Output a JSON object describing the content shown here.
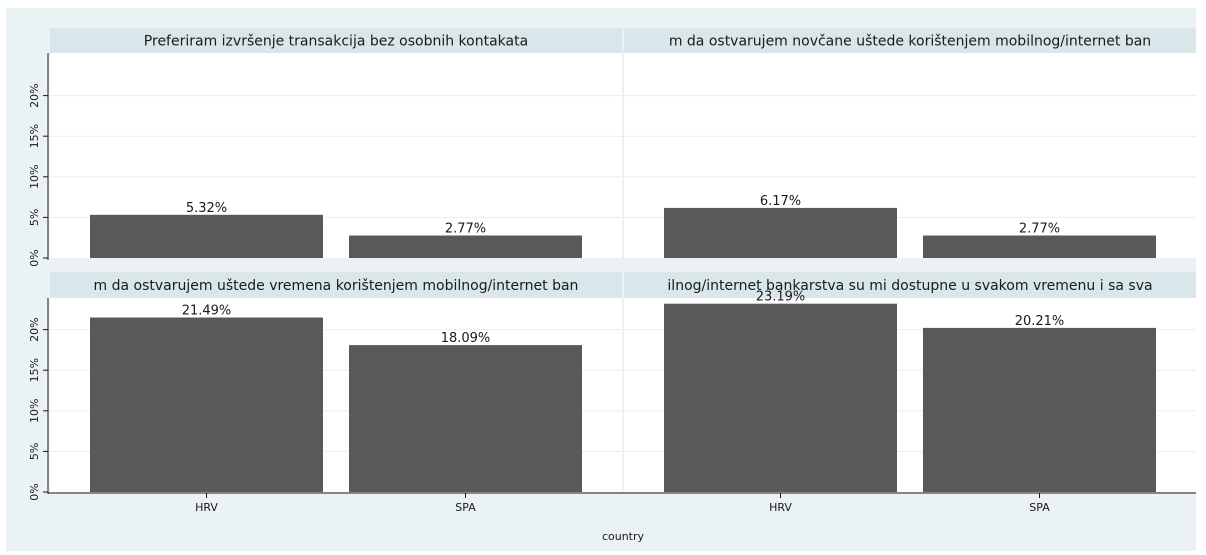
{
  "chart_data": {
    "type": "bar",
    "xlabel": "country",
    "ylabel": "",
    "categories": [
      "HRV",
      "SPA"
    ],
    "ylim": [
      0,
      25
    ],
    "yticks": [
      "0%",
      "5%",
      "10%",
      "15%",
      "20%"
    ],
    "grid": true,
    "bar_color": "#595959",
    "panels": [
      {
        "title": "Preferiram izvršenje transakcija bez osobnih kontakata",
        "values": [
          5.32,
          2.77
        ],
        "labels": [
          "5.32%",
          "2.77%"
        ]
      },
      {
        "title": "m da ostvarujem novčane uštede korištenjem mobilnog/internet ban",
        "values": [
          6.17,
          2.77
        ],
        "labels": [
          "6.17%",
          "2.77%"
        ]
      },
      {
        "title": "m da ostvarujem uštede vremena korištenjem mobilnog/internet ban",
        "values": [
          21.49,
          18.09
        ],
        "labels": [
          "21.49%",
          "18.09%"
        ]
      },
      {
        "title": "ilnog/internet bankarstva su mi dostupne u svakom vremenu i sa sva",
        "values": [
          23.19,
          20.21
        ],
        "labels": [
          "23.19%",
          "20.21%"
        ]
      }
    ]
  }
}
